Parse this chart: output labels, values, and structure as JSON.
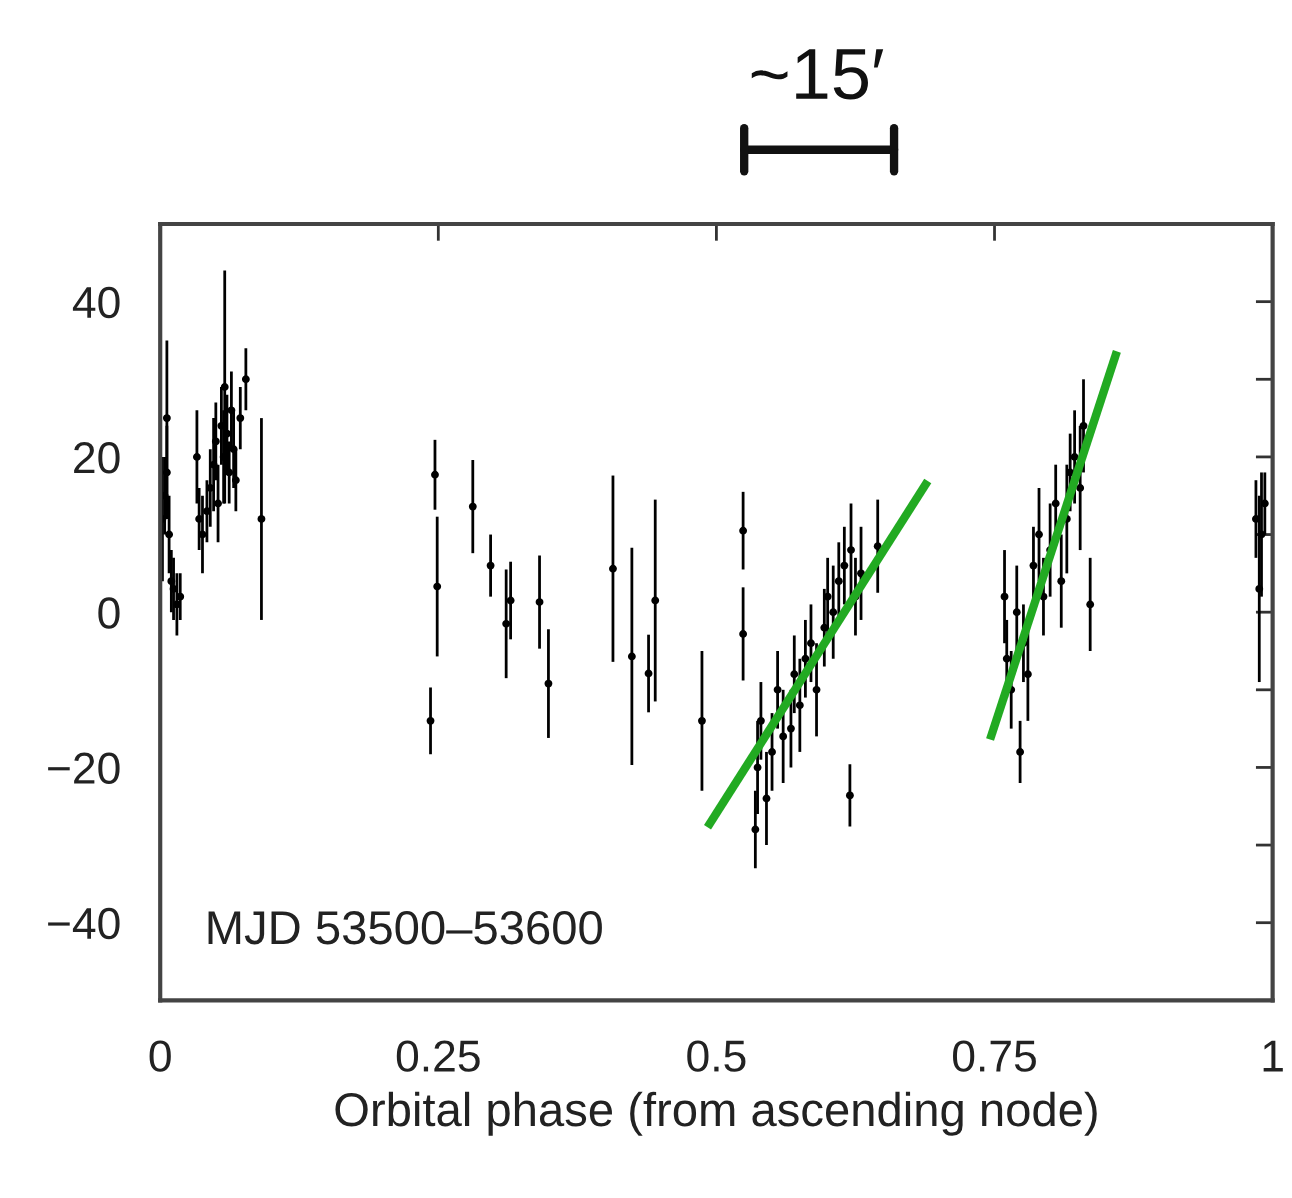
{
  "chart_data": {
    "type": "scatter",
    "xlabel": "Orbital phase (from ascending node)",
    "annotations": [
      "~15′",
      "MJD 53500–53600"
    ],
    "xlim": [
      0,
      1
    ],
    "ylim": [
      -50,
      50
    ],
    "xticks": [
      0,
      0.25,
      0.5,
      0.75,
      1
    ],
    "yticks": [
      {
        "value": -50,
        "label": null
      },
      {
        "value": -40,
        "label": "−40"
      },
      {
        "value": -30,
        "label": null
      },
      {
        "value": -20,
        "label": "−20"
      },
      {
        "value": -10,
        "label": null
      },
      0,
      {
        "value": 10,
        "label": null
      },
      20,
      {
        "value": 30,
        "label": null
      },
      40,
      {
        "value": 50,
        "label": null
      }
    ],
    "grid": false,
    "marker": "circle",
    "series": [
      {
        "color": "#000000",
        "x": [
          0.002,
          0.004,
          0.006,
          0.006,
          0.008,
          0.01,
          0.012,
          0.015,
          0.018,
          0.033,
          0.035,
          0.038,
          0.042,
          0.045,
          0.048,
          0.05,
          0.052,
          0.055,
          0.057,
          0.058,
          0.06,
          0.062,
          0.064,
          0.066,
          0.068,
          0.072,
          0.077,
          0.091,
          0.243,
          0.247,
          0.249,
          0.281,
          0.297,
          0.311,
          0.315,
          0.341,
          0.349,
          0.407,
          0.424,
          0.439,
          0.445,
          0.487,
          0.524,
          0.524,
          0.535,
          0.537,
          0.54,
          0.545,
          0.55,
          0.555,
          0.56,
          0.567,
          0.57,
          0.575,
          0.58,
          0.585,
          0.59,
          0.597,
          0.6,
          0.605,
          0.61,
          0.615,
          0.62,
          0.621,
          0.625,
          0.63,
          0.645,
          0.759,
          0.761,
          0.765,
          0.77,
          0.773,
          0.776,
          0.78,
          0.785,
          0.79,
          0.794,
          0.8,
          0.805,
          0.81,
          0.815,
          0.818,
          0.822,
          0.827,
          0.83,
          0.836,
          0.985,
          0.988,
          0.99,
          0.993
        ],
        "values": [
          12,
          15,
          25,
          18,
          10,
          4,
          3,
          1,
          2,
          20,
          12,
          10,
          13,
          16,
          19,
          22,
          14,
          24,
          20,
          29,
          23,
          18,
          26,
          21,
          17,
          25,
          30,
          12,
          -14,
          17.7,
          3.3,
          13.6,
          6,
          -1.5,
          1.5,
          1.3,
          -9.2,
          5.6,
          -5.7,
          -7.9,
          1.5,
          -14,
          10.5,
          -2.8,
          -28,
          -20,
          -14,
          -24,
          -18,
          -10,
          -16,
          -15,
          -8,
          -12,
          -6,
          -4,
          -10,
          -2,
          2,
          0,
          4,
          6,
          -23.6,
          8,
          2,
          5,
          8.5,
          2,
          -6,
          -10,
          0,
          -18,
          -4,
          -8,
          6,
          10,
          2,
          8,
          14,
          4,
          12,
          18,
          20,
          16,
          24,
          1,
          12,
          3,
          10,
          14
        ],
        "errors": [
          8,
          5,
          10,
          6,
          5,
          4,
          4,
          4,
          3,
          6,
          4,
          5,
          4,
          5,
          6,
          5,
          5,
          5,
          6,
          15,
          5,
          4,
          5,
          5,
          4,
          4,
          4,
          13,
          4.3,
          4.5,
          9,
          6,
          4,
          7,
          5,
          6,
          7,
          12,
          14,
          5,
          13,
          9,
          5,
          6,
          5,
          6,
          5,
          6,
          5,
          5,
          6,
          5,
          5,
          6,
          5,
          5,
          6,
          5,
          5,
          6,
          5,
          5,
          4,
          6,
          5,
          6,
          6,
          6,
          5,
          5,
          6,
          4,
          5,
          6,
          5,
          6,
          5,
          6,
          5,
          6,
          7,
          5,
          6,
          8,
          6,
          6,
          5,
          12,
          8,
          4
        ]
      },
      {
        "type": "line",
        "marker": "none",
        "color": "#22aa22",
        "x": [
          0.492,
          0.69
        ],
        "values": [
          -27.7,
          16.9
        ]
      },
      {
        "type": "line",
        "marker": "none",
        "color": "#22aa22",
        "x": [
          0.746,
          0.86
        ],
        "values": [
          -16.4,
          33.6
        ]
      }
    ]
  }
}
